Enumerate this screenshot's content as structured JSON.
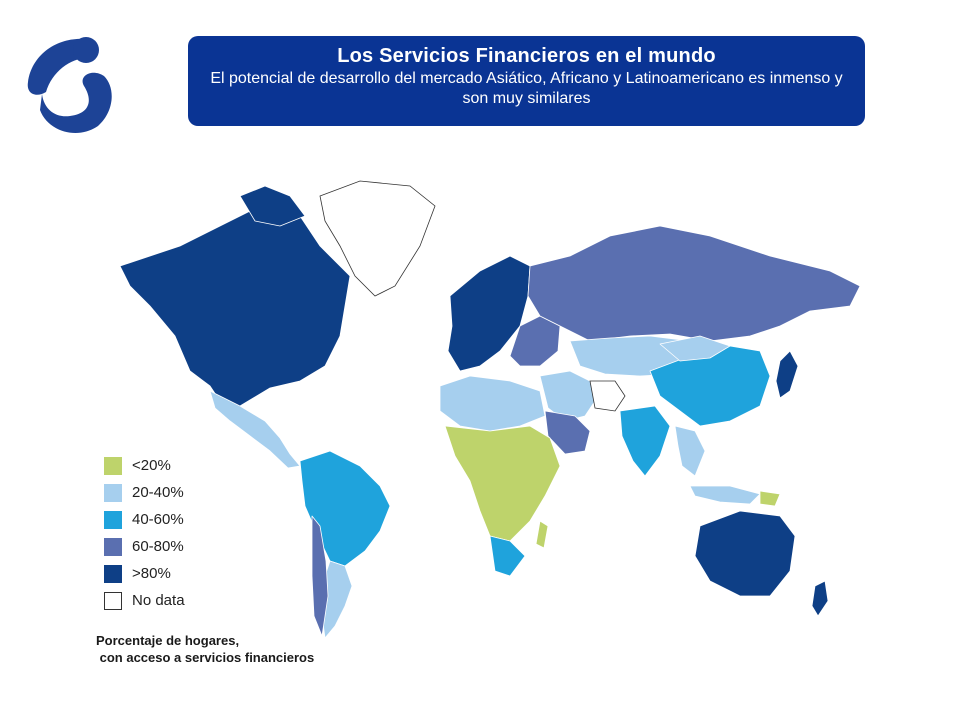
{
  "header": {
    "title": "Los Servicios Financieros en el mundo",
    "subtitle": "El potencial de desarrollo del mercado Asiático, Africano y Latinoamericano es inmenso y son muy similares"
  },
  "colors": {
    "banner": "#0a3494",
    "logo": "#1d4396",
    "lt20": "#bed36b",
    "20to40": "#a6cfee",
    "40to60": "#1fa3dc",
    "60to80": "#5a6fb0",
    "gt80": "#0e3f86",
    "nodata": "#ffffff"
  },
  "legend": [
    {
      "label": "<20%",
      "color": "#bed36b"
    },
    {
      "label": "20-40%",
      "color": "#a6cfee"
    },
    {
      "label": "40-60%",
      "color": "#1fa3dc"
    },
    {
      "label": "60-80%",
      "color": "#5a6fb0"
    },
    {
      "label": ">80%",
      "color": "#0e3f86"
    },
    {
      "label": "No data",
      "color": "#ffffff"
    }
  ],
  "caption": {
    "line1": "Porcentaje de hogares,",
    "line2": " con acceso a servicios financieros"
  },
  "icons": {
    "logo": "company-logo-icon"
  }
}
